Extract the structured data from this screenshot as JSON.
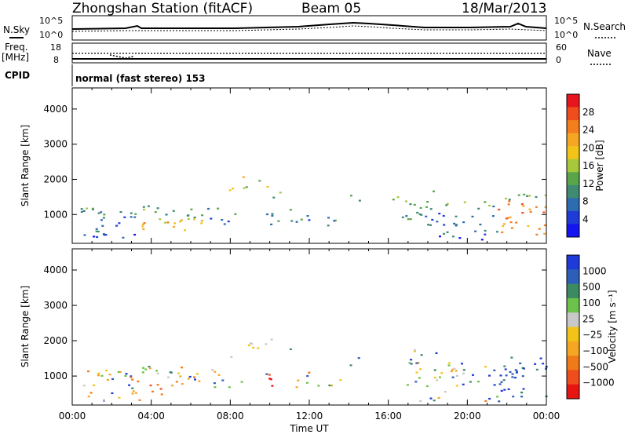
{
  "header": {
    "station": "Zhongshan Station (fitACF)",
    "beam": "Beam 05",
    "date": "18/Mar/2013"
  },
  "strip_panel": {
    "nsky_label": "N.Sky",
    "nsky_ticks": [
      "10^5",
      "10^0"
    ],
    "nsearch_label": "N.Search",
    "nsearch_ticks": [
      "10^5",
      "10^0"
    ],
    "freq_label": "Freq.",
    "freq_unit": "[MHz]",
    "freq_ticks": [
      "18",
      "8"
    ],
    "nave_label": "Nave",
    "nave_ticks": [
      "60",
      "0"
    ],
    "cpid_label": "CPID",
    "cpid_text": "normal (fast stereo) 153"
  },
  "chart_data": [
    {
      "type": "heatmap",
      "panel": "power",
      "ylabel": "Slant Range [km]",
      "yticks": [
        1000,
        2000,
        3000,
        4000
      ],
      "ylim": [
        180,
        4600
      ],
      "xlim": [
        0,
        24
      ],
      "colorbar_label": "Power [dB]",
      "colorbar_ticks": [
        "28",
        "24",
        "20",
        "16",
        "12",
        "8",
        "4"
      ],
      "colorbar_colors": [
        "#e8141e",
        "#f04d1c",
        "#f47d1d",
        "#f5a623",
        "#f2c418",
        "#a8c83c",
        "#5aa54a",
        "#3f8a70",
        "#2e6cb0",
        "#1f3cd6",
        "#1414f0"
      ]
    },
    {
      "type": "heatmap",
      "panel": "velocity",
      "ylabel": "Slant Range [km]",
      "yticks": [
        1000,
        2000,
        3000,
        4000
      ],
      "ylim": [
        180,
        4600
      ],
      "xlim": [
        0,
        24
      ],
      "xticks": [
        "00:00",
        "04:00",
        "08:00",
        "12:00",
        "16:00",
        "20:00",
        "00:00"
      ],
      "xlabel": "Time UT",
      "colorbar_label": "Velocity [m s⁻¹]",
      "colorbar_ticks": [
        "1000",
        "500",
        "100",
        "25",
        "−25",
        "−100",
        "−500",
        "−1000"
      ],
      "colorbar_colors": [
        "#1e3ad8",
        "#2d5fb8",
        "#3c8a62",
        "#6cc24a",
        "#c8c8c8",
        "#f2c418",
        "#f5a623",
        "#f07a1a",
        "#f04d1c",
        "#e81414"
      ]
    }
  ]
}
